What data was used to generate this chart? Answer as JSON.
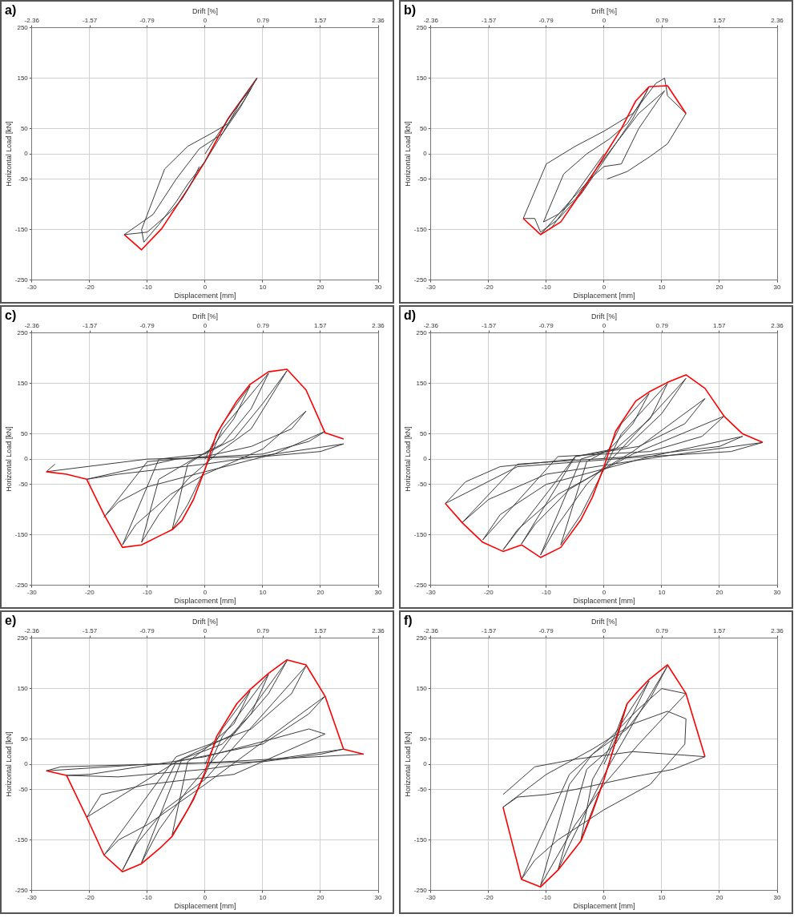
{
  "chart_data": [
    {
      "type": "line",
      "title": "a)",
      "xlabel": "Displacement [mm]",
      "x2label": "Drift [%]",
      "ylabel": "Horizontal Load [kN]",
      "xlim": [
        -30,
        30
      ],
      "xticks": [
        -30,
        -20,
        -10,
        0,
        10,
        20,
        30
      ],
      "x2lim": [
        -2.36,
        2.36
      ],
      "x2ticks": [
        -2.36,
        -1.57,
        -0.79,
        0,
        0.79,
        1.57,
        2.36
      ],
      "ylim": [
        -250,
        250
      ],
      "yticks": [
        -250,
        -150,
        -50,
        0,
        50,
        150,
        250
      ],
      "grid": true,
      "marker": "none",
      "series": [
        {
          "color": "#ff0000",
          "x": [
            -14,
            -11,
            -7.5,
            -3,
            0,
            4,
            9
          ],
          "values": [
            -160,
            -190,
            -148,
            -70,
            -15,
            70,
            150
          ]
        },
        {
          "color": "#3c3c3c",
          "x": [
            0,
            2,
            5,
            9,
            7,
            4,
            1,
            -3,
            -7,
            -11,
            -10.6,
            -8,
            -5,
            -3,
            0,
            3,
            6,
            8,
            6,
            3,
            -1,
            -5,
            -9,
            -14,
            -10,
            -6,
            -4,
            -2,
            -1
          ],
          "values": [
            0,
            35,
            85,
            150,
            110,
            60,
            40,
            15,
            -30,
            -150,
            -175,
            -140,
            -95,
            -60,
            -15,
            40,
            100,
            130,
            90,
            40,
            10,
            -50,
            -120,
            -160,
            -155,
            -115,
            -90,
            -50,
            -25
          ]
        }
      ]
    },
    {
      "type": "line",
      "title": "b)",
      "xlabel": "Displacement [mm]",
      "x2label": "Drift [%]",
      "ylabel": "Horizontal Load [kN]",
      "xlim": [
        -30,
        30
      ],
      "xticks": [
        -30,
        -20,
        -10,
        0,
        10,
        20,
        30
      ],
      "x2lim": [
        -2.36,
        2.36
      ],
      "x2ticks": [
        -2.36,
        -1.57,
        -0.79,
        0,
        0.79,
        1.57,
        2.36
      ],
      "ylim": [
        -250,
        250
      ],
      "yticks": [
        -250,
        -150,
        -50,
        0,
        50,
        150,
        250
      ],
      "grid": true,
      "marker": "none",
      "series": [
        {
          "color": "#3c3c3c",
          "x": [
            0.5,
            4,
            8,
            11,
            14.2,
            11,
            10.5,
            9,
            5,
            0,
            -5,
            -10,
            -14,
            -12,
            -11,
            -8,
            -4,
            -1,
            2,
            5,
            7.8,
            7,
            4,
            1,
            -3,
            -7,
            -10.5,
            -8,
            -5,
            -2,
            2,
            6,
            10.5,
            9,
            6,
            3,
            0,
            -2,
            -6,
            -11,
            -9,
            -5,
            0
          ],
          "values": [
            -50,
            -35,
            -5,
            20,
            80,
            115,
            150,
            140,
            80,
            45,
            15,
            -20,
            -128,
            -128,
            -155,
            -130,
            -80,
            -30,
            20,
            70,
            133,
            115,
            60,
            30,
            0,
            -40,
            -135,
            -120,
            -90,
            -40,
            20,
            80,
            125,
            100,
            50,
            -20,
            -25,
            -45,
            -95,
            -160,
            -145,
            -80,
            0
          ]
        },
        {
          "color": "#ff0000",
          "x": [
            -14,
            -11,
            -7.5,
            -3,
            0,
            3,
            5.5,
            7.8,
            11,
            14.2
          ],
          "values": [
            -128,
            -160,
            -135,
            -60,
            -5,
            50,
            105,
            133,
            135,
            80
          ]
        }
      ]
    },
    {
      "type": "line",
      "title": "c)",
      "xlabel": "Displacement [mm]",
      "x2label": "Drift [%]",
      "ylabel": "Horizontal Load [kN]",
      "xlim": [
        -30,
        30
      ],
      "xticks": [
        -30,
        -20,
        -10,
        0,
        10,
        20,
        30
      ],
      "x2lim": [
        -2.36,
        2.36
      ],
      "x2ticks": [
        -2.36,
        -1.57,
        -0.79,
        0,
        0.79,
        1.57,
        2.36
      ],
      "ylim": [
        -250,
        250
      ],
      "yticks": [
        -250,
        -150,
        -50,
        0,
        50,
        150,
        250
      ],
      "grid": true,
      "marker": "none",
      "series": [
        {
          "color": "#3c3c3c",
          "x": [
            0,
            3,
            7.8,
            5,
            1,
            -3,
            -5.7,
            -3,
            0,
            3,
            11,
            8,
            3,
            -2,
            -8,
            -11,
            -8,
            -3,
            2,
            8,
            14.2,
            10,
            5,
            0,
            -8,
            -14.3,
            -12,
            -6,
            0,
            10,
            17.5,
            15,
            8,
            0,
            -10,
            -17.5,
            -15,
            -10,
            0,
            12,
            20.8,
            18,
            10,
            -5,
            -20.5,
            -15,
            0,
            15,
            24,
            20,
            10,
            -10,
            -24,
            -27.5,
            -26
          ],
          "values": [
            0,
            70,
            145,
            80,
            20,
            -10,
            -140,
            -90,
            -20,
            60,
            170,
            100,
            30,
            0,
            -40,
            -165,
            -110,
            -40,
            10,
            60,
            175,
            110,
            40,
            10,
            0,
            -170,
            -130,
            -70,
            -30,
            20,
            95,
            60,
            25,
            5,
            -5,
            -115,
            -85,
            -55,
            -25,
            10,
            55,
            35,
            10,
            0,
            -40,
            -30,
            -10,
            15,
            30,
            15,
            5,
            0,
            -20,
            -25,
            -10
          ]
        },
        {
          "color": "#ff0000",
          "x": [
            -27.5,
            -24,
            -20.5,
            -17.5,
            -14.3,
            -11,
            -7.5,
            -5.7,
            -4,
            -2,
            0,
            2,
            5.5,
            7.8,
            11,
            14.2,
            17.5,
            20.8,
            24
          ],
          "values": [
            -25,
            -30,
            -40,
            -110,
            -175,
            -170,
            -150,
            -140,
            -122,
            -80,
            -20,
            50,
            115,
            148,
            173,
            178,
            137,
            52,
            40
          ]
        }
      ]
    },
    {
      "type": "line",
      "title": "d)",
      "xlabel": "Displacement [mm]",
      "x2label": "Drift [%]",
      "ylabel": "Horizontal Load [kN]",
      "xlim": [
        -30,
        30
      ],
      "xticks": [
        -30,
        -20,
        -10,
        0,
        10,
        20,
        30
      ],
      "x2lim": [
        -2.36,
        2.36
      ],
      "x2ticks": [
        -2.36,
        -1.57,
        -0.79,
        0,
        0.79,
        1.57,
        2.36
      ],
      "ylim": [
        -250,
        250
      ],
      "yticks": [
        -250,
        -150,
        -50,
        0,
        50,
        150,
        250
      ],
      "grid": true,
      "marker": "none",
      "series": [
        {
          "color": "#3c3c3c",
          "x": [
            0,
            3,
            7.8,
            5,
            1,
            -3,
            -7.5,
            -4,
            0,
            3,
            11,
            8,
            2,
            -4,
            -11,
            -8,
            -3,
            3,
            14.2,
            10,
            4,
            -5,
            -14.3,
            -12,
            -6,
            5,
            17.5,
            14,
            6,
            -5,
            -17.5,
            -15,
            -8,
            5,
            20.8,
            17,
            8,
            -8,
            -21,
            -18,
            -10,
            8,
            24,
            20,
            5,
            -15,
            -24.5,
            -20,
            -10,
            10,
            27.5,
            22,
            5,
            -15,
            -27.5,
            -24,
            -18,
            -5
          ],
          "values": [
            0,
            70,
            130,
            70,
            20,
            -5,
            -170,
            -110,
            -20,
            50,
            150,
            80,
            20,
            0,
            -190,
            -130,
            -50,
            20,
            160,
            90,
            25,
            5,
            -168,
            -130,
            -60,
            15,
            120,
            70,
            25,
            5,
            -180,
            -140,
            -70,
            10,
            85,
            45,
            15,
            5,
            -160,
            -110,
            -50,
            5,
            45,
            25,
            5,
            -10,
            -125,
            -80,
            -30,
            5,
            33,
            15,
            3,
            -15,
            -88,
            -45,
            -15,
            0
          ]
        },
        {
          "color": "#ff0000",
          "x": [
            -27.5,
            -24.5,
            -21,
            -17.5,
            -14.3,
            -11,
            -7.5,
            -4,
            -2,
            0,
            2,
            5.5,
            7.8,
            11,
            14.2,
            17.5,
            20.8,
            24,
            27.5
          ],
          "values": [
            -88,
            -127,
            -165,
            -183,
            -170,
            -195,
            -175,
            -120,
            -75,
            -15,
            55,
            115,
            133,
            152,
            167,
            140,
            85,
            50,
            33
          ]
        }
      ]
    },
    {
      "type": "line",
      "title": "e)",
      "xlabel": "Displacement [mm]",
      "x2label": "Drift [%]",
      "ylabel": "Horizontal Load [kN]",
      "xlim": [
        -30,
        30
      ],
      "xticks": [
        -30,
        -20,
        -10,
        0,
        10,
        20,
        30
      ],
      "x2lim": [
        -2.36,
        2.36
      ],
      "x2ticks": [
        -2.36,
        -1.57,
        -0.79,
        0,
        0.79,
        1.57,
        2.36
      ],
      "ylim": [
        -250,
        250
      ],
      "yticks": [
        -250,
        -150,
        -50,
        0,
        50,
        150,
        250
      ],
      "grid": true,
      "marker": "none",
      "series": [
        {
          "color": "#3c3c3c",
          "x": [
            0,
            3,
            7.8,
            5,
            0,
            -3,
            -5.7,
            -3,
            0,
            3,
            11,
            8,
            3,
            -4,
            -11,
            -8,
            -3,
            3,
            14.2,
            11,
            5,
            -5,
            -14.3,
            -12,
            -7,
            0,
            17.5,
            15,
            8,
            -5,
            -17.5,
            -15,
            -10,
            0,
            20.8,
            18,
            10,
            -5,
            -20.5,
            -18,
            -10,
            5,
            20.8,
            18,
            10,
            0,
            -20,
            -24,
            -15,
            0,
            24,
            20,
            10,
            -10,
            -27.5,
            -25,
            0,
            27.5
          ],
          "values": [
            0,
            70,
            145,
            80,
            30,
            5,
            -140,
            -90,
            -20,
            55,
            178,
            100,
            40,
            10,
            -195,
            -130,
            -50,
            30,
            205,
            140,
            60,
            5,
            -210,
            -160,
            -90,
            -30,
            195,
            140,
            70,
            15,
            -180,
            -150,
            -120,
            -40,
            135,
            100,
            40,
            5,
            -105,
            -60,
            -40,
            -20,
            60,
            70,
            45,
            15,
            -20,
            -22,
            -25,
            -10,
            30,
            20,
            5,
            0,
            -13,
            -5,
            3,
            20
          ]
        },
        {
          "color": "#ff0000",
          "x": [
            -27.5,
            -24,
            -20.5,
            -17.5,
            -14.3,
            -11,
            -7.5,
            -5.7,
            -4,
            -2,
            0,
            2,
            5.5,
            7.8,
            11,
            14.2,
            17.5,
            20.8,
            24,
            27.5
          ],
          "values": [
            -13,
            -22,
            -105,
            -180,
            -213,
            -197,
            -163,
            -143,
            -110,
            -70,
            -15,
            55,
            120,
            148,
            180,
            207,
            197,
            135,
            30,
            20
          ]
        }
      ]
    },
    {
      "type": "line",
      "title": "f)",
      "xlabel": "Displacement [mm]",
      "x2label": "Drift [%]",
      "ylabel": "Horizontal Load [kN]",
      "xlim": [
        -30,
        30
      ],
      "xticks": [
        -30,
        -20,
        -10,
        0,
        10,
        20,
        30
      ],
      "x2lim": [
        -2.36,
        2.36
      ],
      "x2ticks": [
        -2.36,
        -1.57,
        -0.79,
        0,
        0.79,
        1.57,
        2.36
      ],
      "ylim": [
        -250,
        250
      ],
      "yticks": [
        -250,
        -150,
        -50,
        0,
        50,
        150,
        250
      ],
      "grid": true,
      "marker": "none",
      "series": [
        {
          "color": "#3c3c3c",
          "x": [
            0,
            2,
            4,
            2,
            0,
            -2,
            -4,
            -2,
            0,
            3,
            7.8,
            5,
            2,
            -3,
            -8,
            -6,
            -3,
            1,
            5,
            11,
            8,
            4,
            -2,
            -6,
            -11,
            -9,
            -5,
            0,
            6,
            14.2,
            10,
            6,
            0,
            -6,
            -14.3,
            -12,
            -8,
            0,
            8,
            14,
            14.2,
            11,
            5,
            -2,
            -10,
            -17.5,
            -15,
            -10,
            -5,
            5,
            12,
            17.5,
            14,
            5,
            -5,
            -12,
            -17.5
          ],
          "values": [
            0,
            50,
            120,
            60,
            10,
            -30,
            -150,
            -90,
            -30,
            80,
            165,
            100,
            40,
            -10,
            -210,
            -160,
            -90,
            0,
            80,
            195,
            130,
            70,
            20,
            -40,
            -240,
            -200,
            -120,
            -40,
            40,
            140,
            150,
            110,
            40,
            -20,
            -228,
            -190,
            -150,
            -90,
            -40,
            40,
            90,
            105,
            80,
            30,
            -20,
            -85,
            -65,
            -60,
            -50,
            -25,
            -10,
            15,
            18,
            25,
            10,
            -5,
            -60
          ]
        },
        {
          "color": "#ff0000",
          "x": [
            -17.5,
            -14.3,
            -11,
            -8,
            -4,
            -2,
            0,
            2,
            4,
            5.5,
            7.8,
            11,
            14.2,
            17.5
          ],
          "values": [
            -85,
            -228,
            -243,
            -210,
            -152,
            -95,
            -30,
            45,
            120,
            140,
            168,
            197,
            140,
            15
          ]
        }
      ]
    }
  ]
}
